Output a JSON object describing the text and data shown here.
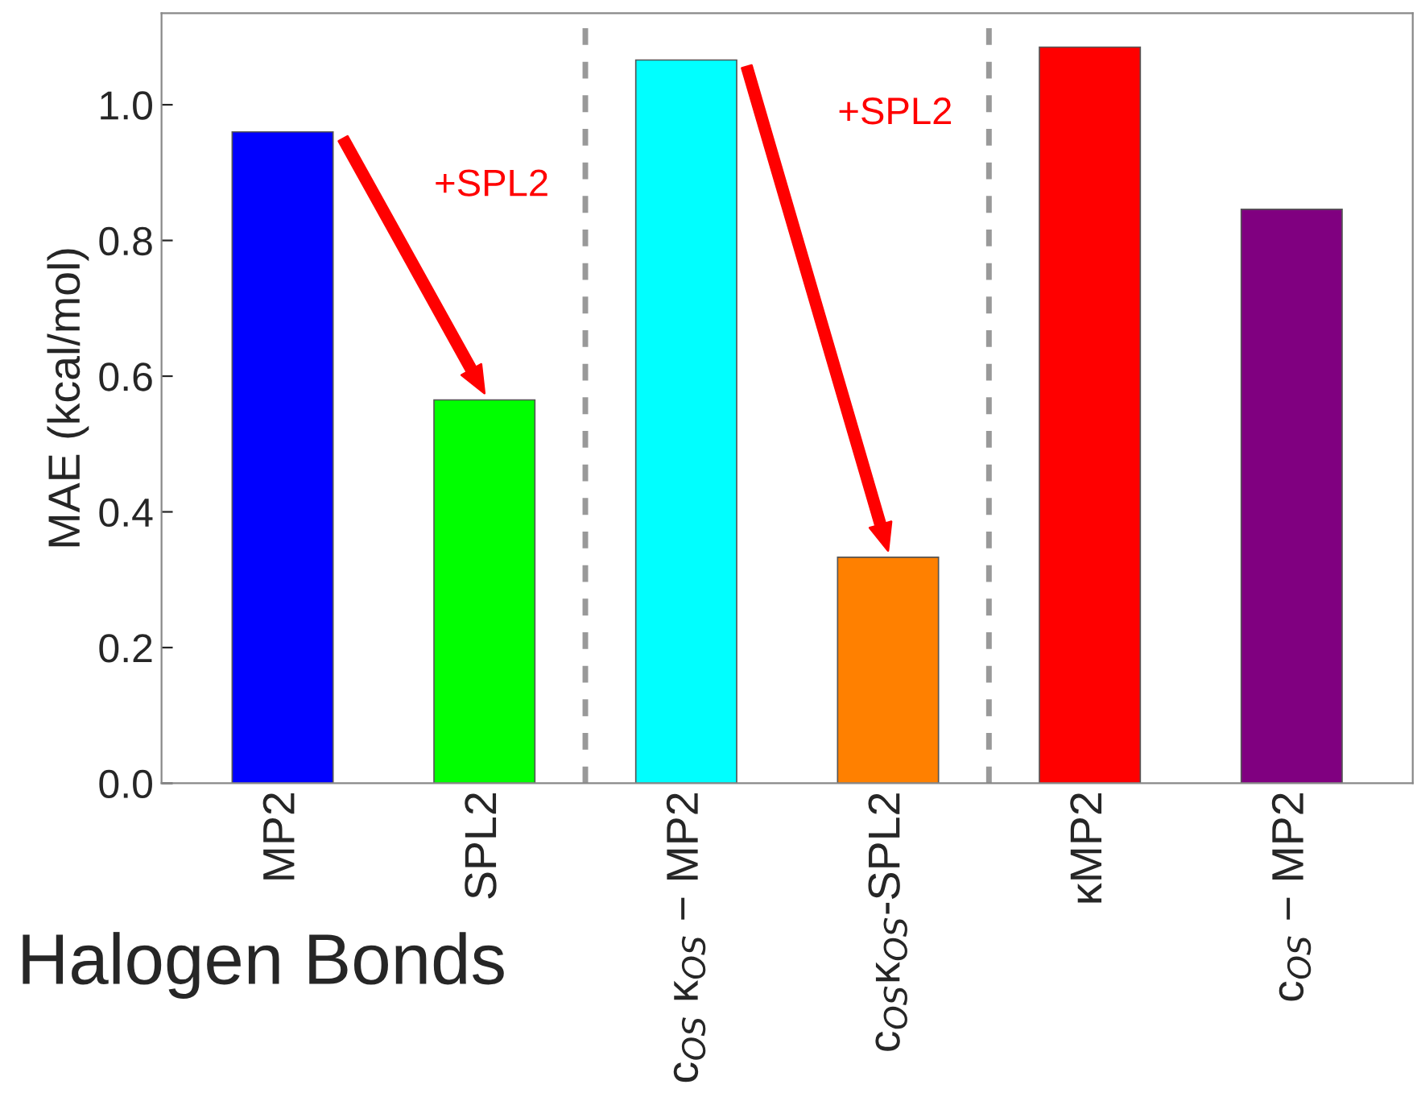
{
  "chart_data": {
    "type": "bar",
    "categories": [
      "MP2",
      "SPL2",
      "c$_{OS}$ κ$_{OS}$ − MP2",
      "c$_{OS}$κ$_{OS}$-SPL2",
      "κMP2",
      "c$_{OS}$ − MP2"
    ],
    "values": [
      0.96,
      0.565,
      1.066,
      0.333,
      1.085,
      0.846
    ],
    "colors": [
      "#0000ff",
      "#00ff00",
      "#00ffff",
      "#ff8000",
      "#ff0000",
      "#800080"
    ],
    "ylabel": "MAE (kcal/mol)",
    "ylim": [
      0,
      1.135
    ],
    "yticks": [
      {
        "value": 0,
        "label": "0.0"
      },
      {
        "value": 0.2,
        "label": "0.2"
      },
      {
        "value": 0.4,
        "label": "0.4"
      },
      {
        "value": 0.6,
        "label": "0.6"
      },
      {
        "value": 0.8,
        "label": "0.8"
      },
      {
        "value": 1.0,
        "label": "1.0"
      }
    ],
    "annotations": [
      "+SPL2",
      "+SPL2",
      "Halogen Bonds"
    ],
    "grid": false,
    "legend": false
  }
}
